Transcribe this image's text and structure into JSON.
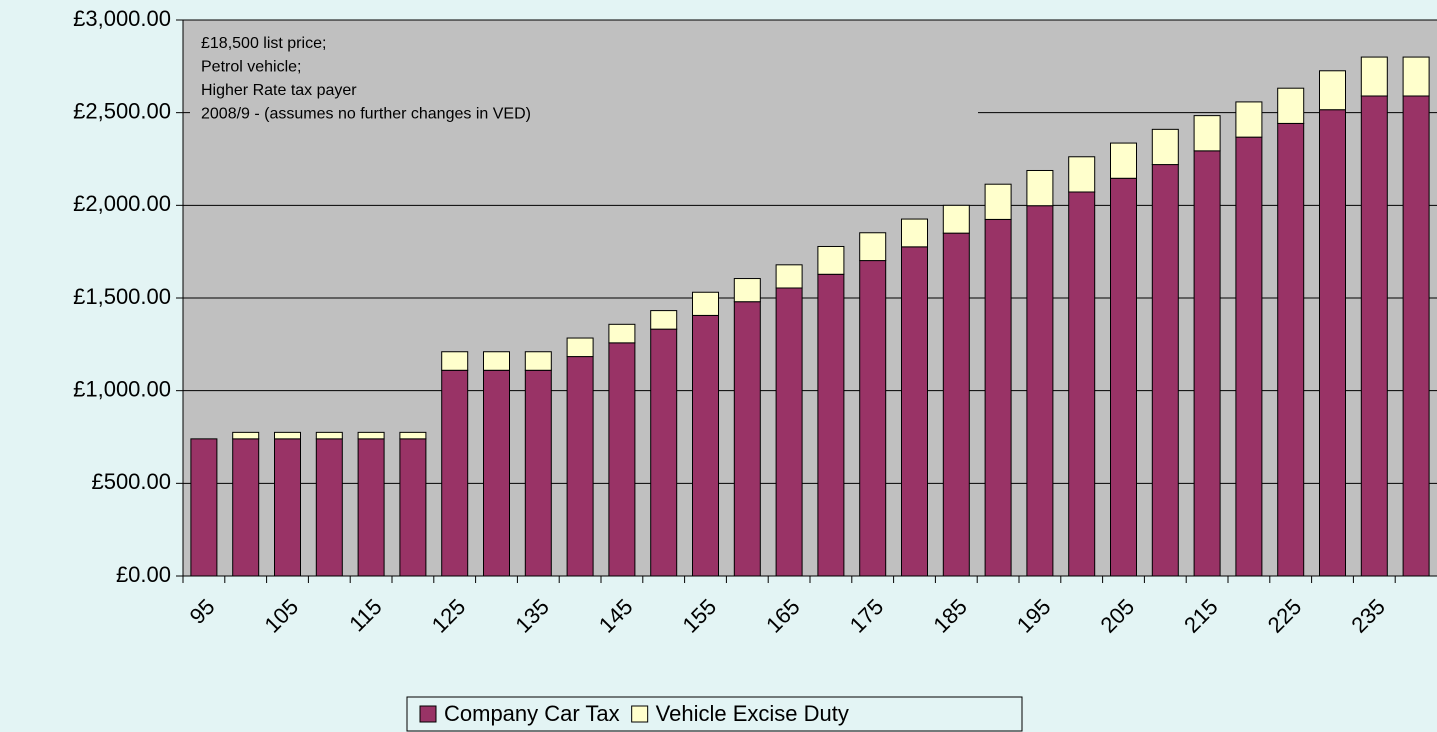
{
  "chart_data": {
    "type": "stacked_bar",
    "annotation": [
      "£18,500 list price;",
      "Petrol vehicle;",
      "Higher Rate tax payer",
      "2008/9 - (assumes no further changes in VED)"
    ],
    "categories": [
      "95",
      null,
      "105",
      null,
      "115",
      null,
      "125",
      null,
      "135",
      null,
      "145",
      null,
      "155",
      null,
      "165",
      null,
      "175",
      null,
      "185",
      null,
      "195",
      null,
      "205",
      null,
      "215",
      null,
      "225",
      null,
      "235",
      null
    ],
    "series": [
      {
        "name": "Company Car Tax",
        "color": "#993366",
        "values": [
          740,
          740,
          740,
          740,
          740,
          740,
          1110,
          1110,
          1110,
          1184,
          1258,
          1332,
          1406,
          1480,
          1554,
          1628,
          1702,
          1776,
          1850,
          1924,
          1998,
          2072,
          2146,
          2220,
          2294,
          2368,
          2442,
          2516,
          2590,
          2590
        ]
      },
      {
        "name": "Vehicle Excise Duty",
        "color": "#ffffcc",
        "values": [
          0,
          35,
          35,
          35,
          35,
          35,
          100,
          100,
          100,
          100,
          100,
          100,
          125,
          125,
          125,
          150,
          150,
          150,
          150,
          190,
          190,
          190,
          190,
          190,
          190,
          190,
          190,
          210,
          210,
          210
        ]
      }
    ],
    "ylim": [
      0,
      3000
    ],
    "yticks": [
      {
        "value": 0,
        "label": "£0.00"
      },
      {
        "value": 500,
        "label": "£500.00"
      },
      {
        "value": 1000,
        "label": "£1,000.00"
      },
      {
        "value": 1500,
        "label": "£1,500.00"
      },
      {
        "value": 2000,
        "label": "£2,000.00"
      },
      {
        "value": 2500,
        "label": "£2,500.00"
      },
      {
        "value": 3000,
        "label": "£3,000.00"
      }
    ],
    "grid": true
  }
}
